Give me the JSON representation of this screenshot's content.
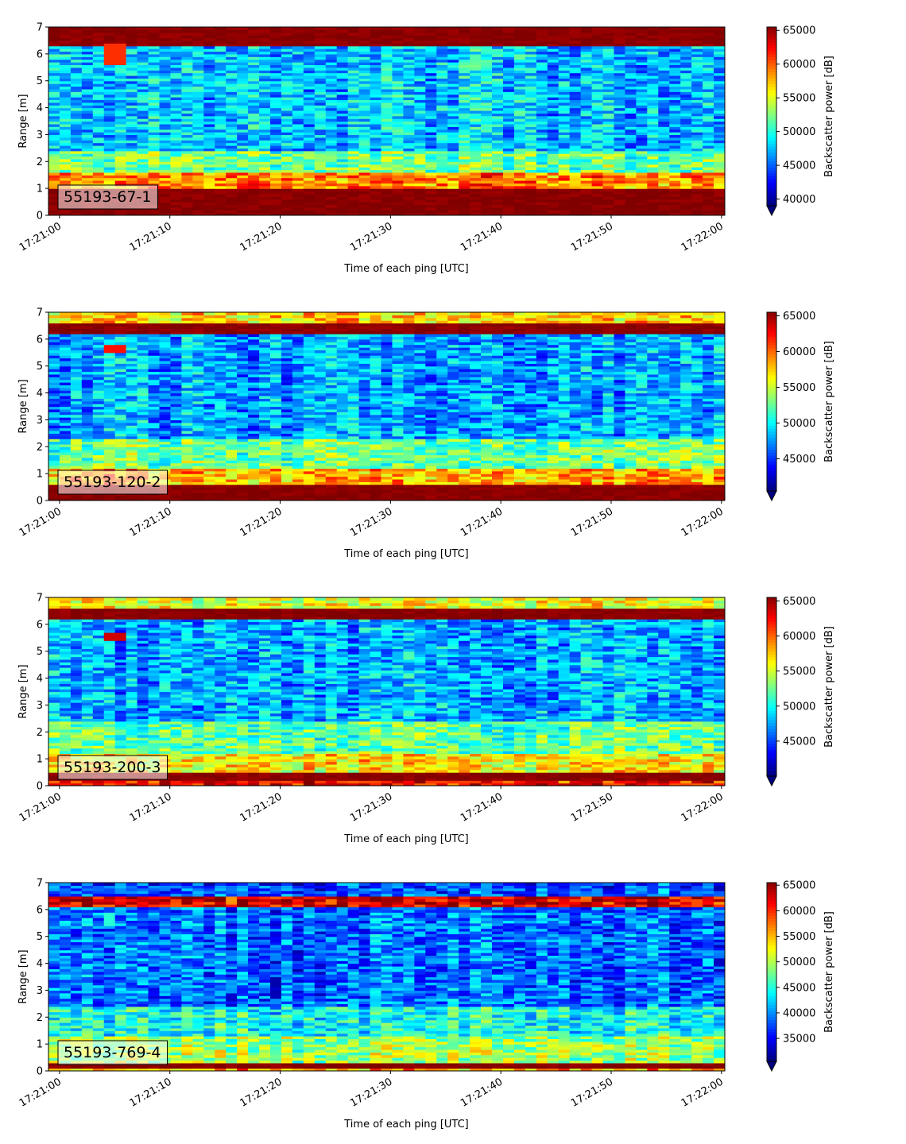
{
  "figure": {
    "colormap": "jet",
    "colors": {
      "background": "#ffffff",
      "label_box_edge": "#000000"
    }
  },
  "chart_data": [
    {
      "type": "heatmap",
      "label": "55193-67-1",
      "xlabel": "Time of each ping [UTC]",
      "ylabel": "Range [m]",
      "colorbar_label": "Backscatter power [dB]",
      "xlim": [
        "17:20:59",
        "17:22:00.3"
      ],
      "x_ticks": [
        "17:21:00",
        "17:21:10",
        "17:21:20",
        "17:21:30",
        "17:21:40",
        "17:21:50",
        "17:22:00"
      ],
      "ylim": [
        0,
        7
      ],
      "y_ticks": [
        "0",
        "1",
        "2",
        "3",
        "4",
        "5",
        "6",
        "7"
      ],
      "clim": [
        39000,
        65500
      ],
      "colorbar_ticks": [
        "40000",
        "45000",
        "50000",
        "55000",
        "60000",
        "65000"
      ],
      "colorbar_extend": "min",
      "bands": [
        {
          "y": [
            0,
            0.25
          ],
          "value": 65000
        },
        {
          "y": [
            0.25,
            1.0
          ],
          "value": 65000
        },
        {
          "y": [
            1.0,
            1.6
          ],
          "value": 59000
        },
        {
          "y": [
            1.6,
            2.4
          ],
          "value": 52000
        },
        {
          "y": [
            2.4,
            6.3
          ],
          "value": 47500
        },
        {
          "y": [
            6.3,
            7.0
          ],
          "value": 65000
        }
      ],
      "features": [
        {
          "x": [
            "17:21:03.6",
            "17:21:05.8"
          ],
          "y": [
            5.6,
            6.4
          ],
          "value": 61000
        }
      ]
    },
    {
      "type": "heatmap",
      "label": "55193-120-2",
      "xlabel": "Time of each ping [UTC]",
      "ylabel": "Range [m]",
      "colorbar_label": "Backscatter power [dB]",
      "xlim": [
        "17:20:59",
        "17:22:00.3"
      ],
      "x_ticks": [
        "17:21:00",
        "17:21:10",
        "17:21:20",
        "17:21:30",
        "17:21:40",
        "17:21:50",
        "17:22:00"
      ],
      "ylim": [
        0,
        7
      ],
      "y_ticks": [
        "0",
        "1",
        "2",
        "3",
        "4",
        "5",
        "6",
        "7"
      ],
      "clim": [
        40500,
        65500
      ],
      "colorbar_ticks": [
        "45000",
        "50000",
        "55000",
        "60000",
        "65000"
      ],
      "colorbar_extend": "min",
      "bands": [
        {
          "y": [
            0,
            0.2
          ],
          "value": 65000
        },
        {
          "y": [
            0.2,
            0.6
          ],
          "value": 65000
        },
        {
          "y": [
            0.6,
            1.2
          ],
          "value": 58000
        },
        {
          "y": [
            1.2,
            2.3
          ],
          "value": 52500
        },
        {
          "y": [
            2.3,
            6.2
          ],
          "value": 47500
        },
        {
          "y": [
            6.2,
            6.6
          ],
          "value": 65000
        },
        {
          "y": [
            6.6,
            7.0
          ],
          "value": 57000
        }
      ],
      "features": [
        {
          "x": [
            "17:21:04.3",
            "17:21:06.2"
          ],
          "y": [
            5.5,
            5.8
          ],
          "value": 62000
        }
      ]
    },
    {
      "type": "heatmap",
      "label": "55193-200-3",
      "xlabel": "Time of each ping [UTC]",
      "ylabel": "Range [m]",
      "colorbar_label": "Backscatter power [dB]",
      "xlim": [
        "17:20:59",
        "17:22:00.3"
      ],
      "x_ticks": [
        "17:21:00",
        "17:21:10",
        "17:21:20",
        "17:21:30",
        "17:21:40",
        "17:21:50",
        "17:22:00"
      ],
      "ylim": [
        0,
        7
      ],
      "y_ticks": [
        "0",
        "1",
        "2",
        "3",
        "4",
        "5",
        "6",
        "7"
      ],
      "clim": [
        40000,
        65500
      ],
      "colorbar_ticks": [
        "45000",
        "50000",
        "55000",
        "60000",
        "65000"
      ],
      "colorbar_extend": "min",
      "bands": [
        {
          "y": [
            0,
            0.2
          ],
          "value": 62000
        },
        {
          "y": [
            0.2,
            0.55
          ],
          "value": 65000
        },
        {
          "y": [
            0.55,
            1.2
          ],
          "value": 56500
        },
        {
          "y": [
            1.2,
            2.4
          ],
          "value": 52000
        },
        {
          "y": [
            2.4,
            6.2
          ],
          "value": 47500
        },
        {
          "y": [
            6.2,
            6.6
          ],
          "value": 65000
        },
        {
          "y": [
            6.6,
            7.0
          ],
          "value": 55500
        }
      ],
      "features": [
        {
          "x": [
            "17:21:04.3",
            "17:21:06.2"
          ],
          "y": [
            5.4,
            5.7
          ],
          "value": 63500
        }
      ]
    },
    {
      "type": "heatmap",
      "label": "55193-769-4",
      "xlabel": "Time of each ping [UTC]",
      "ylabel": "Range [m]",
      "colorbar_label": "Backscatter power [dB]",
      "xlim": [
        "17:20:59",
        "17:22:00.3"
      ],
      "x_ticks": [
        "17:21:00",
        "17:21:10",
        "17:21:20",
        "17:21:30",
        "17:21:40",
        "17:21:50",
        "17:22:00"
      ],
      "ylim": [
        0,
        7
      ],
      "y_ticks": [
        "0",
        "1",
        "2",
        "3",
        "4",
        "5",
        "6",
        "7"
      ],
      "clim": [
        30500,
        65500
      ],
      "colorbar_ticks": [
        "35000",
        "40000",
        "45000",
        "50000",
        "55000",
        "60000",
        "65000"
      ],
      "colorbar_extend": "min",
      "bands": [
        {
          "y": [
            0,
            0.1
          ],
          "value": 55000
        },
        {
          "y": [
            0.1,
            0.3
          ],
          "value": 65000
        },
        {
          "y": [
            0.3,
            1.3
          ],
          "value": 49000
        },
        {
          "y": [
            1.3,
            2.4
          ],
          "value": 44000
        },
        {
          "y": [
            2.4,
            6.1
          ],
          "value": 38500
        },
        {
          "y": [
            6.1,
            6.5
          ],
          "value": 62000
        },
        {
          "y": [
            6.5,
            7.0
          ],
          "value": 37500
        }
      ],
      "features": [
        {
          "x": [
            "17:21:04.3",
            "17:21:05.3"
          ],
          "y": [
            5.4,
            5.9
          ],
          "value": 45000
        }
      ]
    }
  ]
}
